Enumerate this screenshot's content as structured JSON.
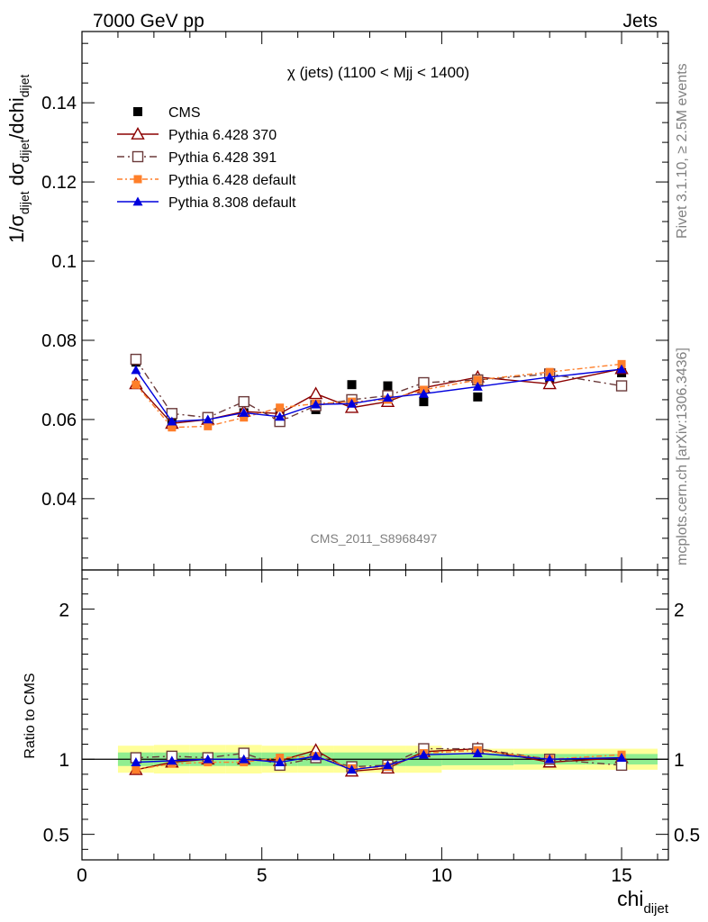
{
  "header": {
    "left": "7000 GeV pp",
    "right": "Jets"
  },
  "side_text": {
    "rivet": "Rivet 3.1.10, ≥ 2.5M events",
    "mcplots": "mcplots.cern.ch [arXiv:1306.3436]"
  },
  "main_panel": {
    "title": "χ (jets) (1100 < Mjj < 1400)",
    "ylabel": {
      "base": "1/σ",
      "sub1": "dijet",
      "mid": " dσ",
      "sub2": "dijet",
      "tail": "/dchi",
      "sub3": "dijet"
    },
    "watermark": "CMS_2011_S8968497"
  },
  "ratio_panel": {
    "ylabel": "Ratio to CMS"
  },
  "xlabel": {
    "base": "chi",
    "sub": "dijet"
  },
  "colors": {
    "cms": "#000000",
    "p370": "#8b0000",
    "p391": "#6b3a3a",
    "p6def": "#ff7f2a",
    "p8def": "#0000dd",
    "band_inner": "#90ee90",
    "band_outer": "#ffff99"
  },
  "chart_data": {
    "type": "line",
    "x": [
      1.5,
      2.5,
      3.5,
      4.5,
      5.5,
      6.5,
      7.5,
      8.5,
      9.5,
      11.0,
      13.0,
      15.0
    ],
    "xlim": [
      0,
      16.3
    ],
    "xticks": [
      0,
      5,
      10,
      15
    ],
    "main": {
      "ylim": [
        0.022,
        0.158
      ],
      "yticks": [
        0.04,
        0.06,
        0.08,
        0.1,
        0.12,
        0.14
      ],
      "series": [
        {
          "name": "CMS",
          "marker": "square-filled",
          "values": [
            0.0745,
            0.06,
            0.06,
            0.0617,
            0.0618,
            0.0625,
            0.0688,
            0.0685,
            0.0645,
            0.0657,
            0.0705,
            0.0718
          ]
        },
        {
          "name": "Pythia 6.428 370",
          "marker": "triangle-open",
          "values": [
            0.069,
            0.059,
            0.06,
            0.062,
            0.0615,
            0.0665,
            0.063,
            0.0645,
            0.068,
            0.0707,
            0.069,
            0.0728
          ]
        },
        {
          "name": "Pythia 6.428 391",
          "marker": "square-open",
          "values": [
            0.0752,
            0.0615,
            0.0605,
            0.0645,
            0.0595,
            0.0635,
            0.065,
            0.066,
            0.0693,
            0.07,
            0.0715,
            0.0685
          ]
        },
        {
          "name": "Pythia 6.428 default",
          "marker": "square-small",
          "values": [
            0.0688,
            0.058,
            0.0583,
            0.0605,
            0.063,
            0.064,
            0.0645,
            0.065,
            0.0675,
            0.07,
            0.072,
            0.074
          ]
        },
        {
          "name": "Pythia 8.308 default",
          "marker": "triangle-filled",
          "values": [
            0.0725,
            0.0595,
            0.06,
            0.0617,
            0.0607,
            0.0638,
            0.064,
            0.0655,
            0.0665,
            0.0683,
            0.0707,
            0.0727
          ]
        }
      ]
    },
    "ratio": {
      "ylim": [
        0.33,
        2.26
      ],
      "yticks": [
        0.5,
        1,
        2
      ],
      "bands": [
        {
          "x": [
            1.0,
            2.0
          ],
          "inner": [
            0.955,
            1.045
          ],
          "outer": [
            0.91,
            1.09
          ]
        },
        {
          "x": [
            2.0,
            3.0
          ],
          "inner": [
            0.955,
            1.045
          ],
          "outer": [
            0.905,
            1.095
          ]
        },
        {
          "x": [
            3.0,
            4.0
          ],
          "inner": [
            0.955,
            1.045
          ],
          "outer": [
            0.905,
            1.095
          ]
        },
        {
          "x": [
            4.0,
            5.0
          ],
          "inner": [
            0.955,
            1.045
          ],
          "outer": [
            0.905,
            1.095
          ]
        },
        {
          "x": [
            5.0,
            6.0
          ],
          "inner": [
            0.955,
            1.045
          ],
          "outer": [
            0.91,
            1.09
          ]
        },
        {
          "x": [
            6.0,
            7.0
          ],
          "inner": [
            0.955,
            1.045
          ],
          "outer": [
            0.91,
            1.09
          ]
        },
        {
          "x": [
            7.0,
            8.0
          ],
          "inner": [
            0.955,
            1.045
          ],
          "outer": [
            0.91,
            1.09
          ]
        },
        {
          "x": [
            8.0,
            9.0
          ],
          "inner": [
            0.955,
            1.045
          ],
          "outer": [
            0.91,
            1.09
          ]
        },
        {
          "x": [
            9.0,
            10.0
          ],
          "inner": [
            0.955,
            1.045
          ],
          "outer": [
            0.91,
            1.09
          ]
        },
        {
          "x": [
            10.0,
            12.0
          ],
          "inner": [
            0.96,
            1.04
          ],
          "outer": [
            0.93,
            1.07
          ]
        },
        {
          "x": [
            12.0,
            14.0
          ],
          "inner": [
            0.965,
            1.035
          ],
          "outer": [
            0.93,
            1.07
          ]
        },
        {
          "x": [
            14.0,
            16.0
          ],
          "inner": [
            0.965,
            1.035
          ],
          "outer": [
            0.93,
            1.07
          ]
        }
      ],
      "series": [
        {
          "name": "Pythia 6.428 370",
          "values": [
            0.93,
            0.98,
            1.0,
            1.0,
            0.99,
            1.06,
            0.92,
            0.94,
            1.05,
            1.07,
            0.98,
            1.01
          ]
        },
        {
          "name": "Pythia 6.428 391",
          "values": [
            1.01,
            1.02,
            1.01,
            1.04,
            0.96,
            1.01,
            0.95,
            0.96,
            1.07,
            1.07,
            1.0,
            0.96
          ]
        },
        {
          "name": "Pythia 6.428 default",
          "values": [
            0.93,
            0.97,
            0.98,
            0.98,
            1.01,
            1.02,
            0.94,
            0.95,
            1.04,
            1.06,
            1.0,
            1.03
          ]
        },
        {
          "name": "Pythia 8.308 default",
          "values": [
            0.98,
            0.99,
            1.0,
            1.0,
            0.98,
            1.02,
            0.93,
            0.96,
            1.03,
            1.04,
            1.0,
            1.01
          ]
        }
      ]
    }
  }
}
